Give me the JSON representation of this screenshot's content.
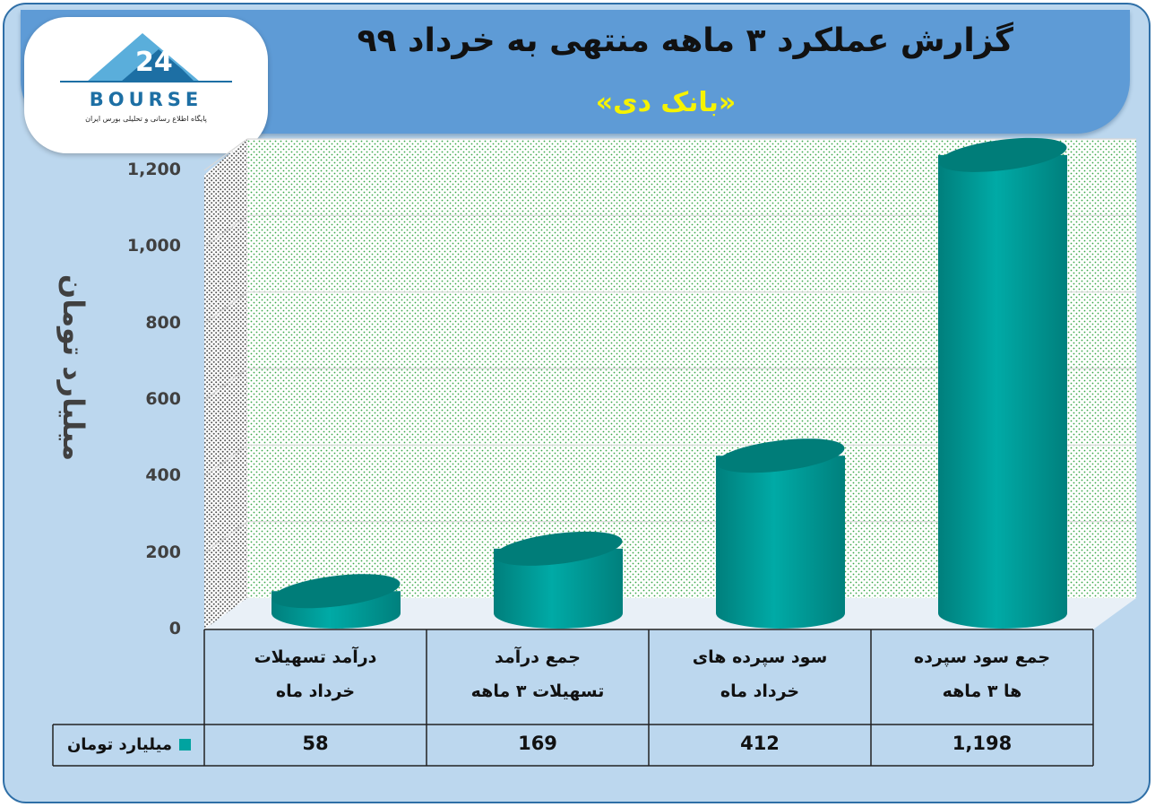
{
  "header": {
    "title": "گزارش عملکرد ۳ ماهه منتهی به خرداد ۹۹",
    "subtitle": "«بانک دی»"
  },
  "logo": {
    "name": "BOURSE",
    "tagline": "پایگاه اطلاع رسانی و تحلیلی بورس ایران",
    "icon": "24-mountain-logo-icon"
  },
  "colors": {
    "frame_bg": "#bcd7ee",
    "title_bg": "#5e9bd6",
    "subtitle_text": "#f6f300",
    "bar_face": "#00a3a0",
    "bar_top": "#007d79"
  },
  "chart_data": {
    "type": "bar",
    "style": "3d-cylinder",
    "title": "",
    "ylabel": "میلیارد تومان",
    "ylim": [
      0,
      1200
    ],
    "yticks": [
      "0",
      "200",
      "400",
      "600",
      "800",
      "1,000",
      "1,200"
    ],
    "grid": true,
    "categories": [
      {
        "line1": "درآمد تسهیلات",
        "line2": "خرداد ماه"
      },
      {
        "line1": "جمع درآمد",
        "line2": "تسهیلات ۳ ماهه"
      },
      {
        "line1": "سود سپرده های",
        "line2": "خرداد ماه"
      },
      {
        "line1": "جمع سود سپرده",
        "line2": "ها ۳ ماهه"
      }
    ],
    "series": [
      {
        "name": "میلیارد تومان",
        "values": [
          58,
          169,
          412,
          1198
        ],
        "labels": [
          "58",
          "169",
          "412",
          "1,198"
        ]
      }
    ],
    "legend": "left-of-data-table"
  }
}
